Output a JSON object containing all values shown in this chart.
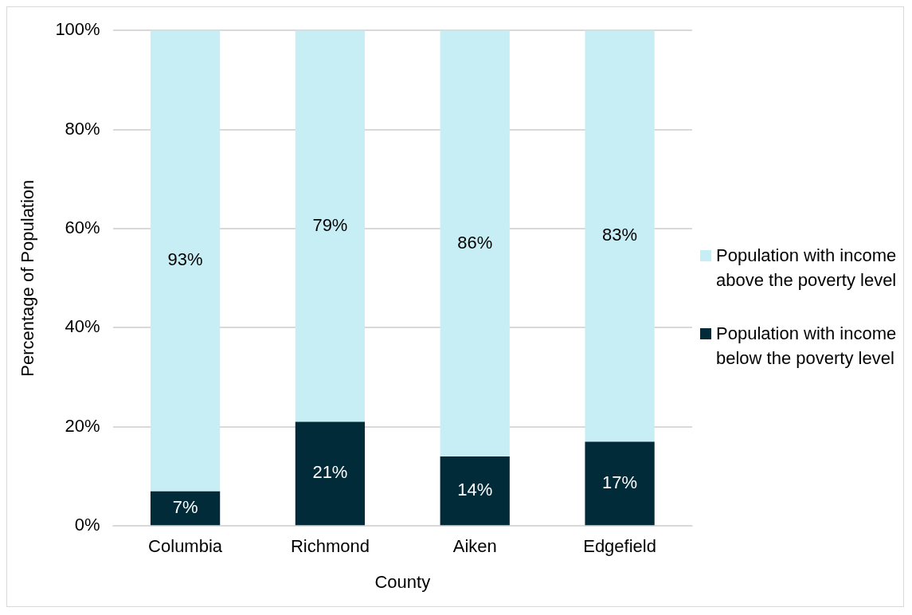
{
  "chart_data": {
    "type": "bar",
    "stacked": true,
    "xlabel": "County",
    "ylabel": "Percentage of Population",
    "categories": [
      "Columbia",
      "Richmond",
      "Aiken",
      "Edgefield"
    ],
    "series": [
      {
        "name": "Population with income below the poverty level",
        "color": "#022b3a",
        "values": [
          7,
          21,
          14,
          17
        ],
        "value_labels": [
          "7%",
          "21%",
          "14%",
          "17%"
        ]
      },
      {
        "name": "Population with income above the poverty level",
        "color": "#c8eef5",
        "values": [
          93,
          79,
          86,
          83
        ],
        "value_labels": [
          "93%",
          "79%",
          "86%",
          "83%"
        ]
      }
    ],
    "ylim": [
      0,
      100
    ],
    "yticks": [
      {
        "value": 0,
        "label": "0%"
      },
      {
        "value": 20,
        "label": "20%"
      },
      {
        "value": 40,
        "label": "40%"
      },
      {
        "value": 60,
        "label": "60%"
      },
      {
        "value": 80,
        "label": "80%"
      },
      {
        "value": 100,
        "label": "100%"
      }
    ],
    "grid": "y",
    "legend": "right"
  }
}
